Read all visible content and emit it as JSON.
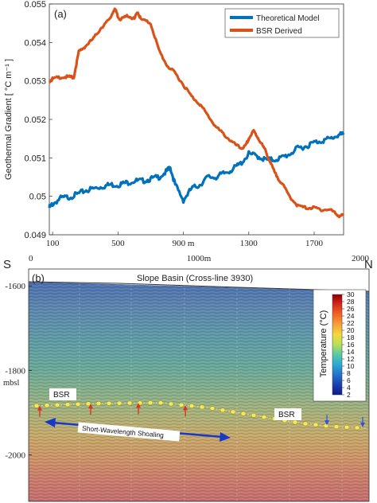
{
  "chart_data": [
    {
      "type": "line",
      "panel_label": "(a)",
      "ylabel": "Geothermal Gradient [ °C m⁻¹ ]",
      "ylim": [
        0.049,
        0.055
      ],
      "xlim": [
        80,
        1880
      ],
      "yticks": [
        "0.049",
        "0.05",
        "0.051",
        "0.052",
        "0.053",
        "0.054",
        "0.055"
      ],
      "yticks_values": [
        0.049,
        0.05,
        0.051,
        0.052,
        0.053,
        0.054,
        0.055
      ],
      "xticks": [
        "100",
        "500",
        "900 m",
        "1300",
        "1700"
      ],
      "xticks_values": [
        100,
        500,
        900,
        1300,
        1700
      ],
      "legend_position": "top-right",
      "series": [
        {
          "name": "Theoretical Model",
          "color": "#0072bd",
          "x": [
            80,
            100,
            150,
            200,
            250,
            300,
            350,
            400,
            450,
            500,
            550,
            600,
            650,
            700,
            750,
            800,
            820,
            850,
            900,
            950,
            1000,
            1050,
            1100,
            1150,
            1200,
            1250,
            1300,
            1350,
            1400,
            1450,
            1500,
            1550,
            1600,
            1650,
            1700,
            1750,
            1800,
            1850,
            1880
          ],
          "y": [
            0.0497,
            0.0498,
            0.04995,
            0.04998,
            0.05005,
            0.05015,
            0.0502,
            0.05025,
            0.0503,
            0.0503,
            0.05035,
            0.0504,
            0.0504,
            0.05045,
            0.0505,
            0.05065,
            0.05075,
            0.0503,
            0.0499,
            0.0502,
            0.0503,
            0.0505,
            0.0505,
            0.0506,
            0.0507,
            0.05085,
            0.0511,
            0.05105,
            0.05095,
            0.05095,
            0.051,
            0.0511,
            0.05125,
            0.0513,
            0.0514,
            0.05145,
            0.0515,
            0.0516,
            0.0516
          ]
        },
        {
          "name": "BSR Derived",
          "color": "#d95319",
          "x": [
            80,
            100,
            150,
            200,
            230,
            260,
            300,
            350,
            400,
            450,
            480,
            500,
            520,
            560,
            600,
            620,
            640,
            700,
            750,
            800,
            850,
            900,
            950,
            1000,
            1050,
            1100,
            1150,
            1200,
            1250,
            1280,
            1300,
            1330,
            1360,
            1400,
            1430,
            1460,
            1500,
            1550,
            1600,
            1650,
            1700,
            1750,
            1800,
            1850,
            1880
          ],
          "y": [
            0.053,
            0.05305,
            0.0531,
            0.0531,
            0.0531,
            0.05375,
            0.0539,
            0.0541,
            0.0544,
            0.0546,
            0.0549,
            0.05465,
            0.0546,
            0.0547,
            0.0546,
            0.0548,
            0.0546,
            0.0545,
            0.0538,
            0.0534,
            0.0532,
            0.0529,
            0.0526,
            0.0524,
            0.0521,
            0.0518,
            0.0516,
            0.0514,
            0.05125,
            0.0513,
            0.0515,
            0.0517,
            0.0515,
            0.0512,
            0.0509,
            0.0506,
            0.05035,
            0.05,
            0.04975,
            0.0497,
            0.0497,
            0.04965,
            0.04965,
            0.0495,
            0.0495
          ]
        }
      ]
    },
    {
      "type": "heatmap",
      "panel_label": "(b)",
      "title": "Slope Basin (Cross-line 3930)",
      "left_end_label": "S",
      "right_end_label": "N",
      "x_axis_ticks": [
        "0",
        "1000m",
        "2000"
      ],
      "x_axis_ticks_values": [
        0,
        1000,
        2000
      ],
      "ylabel_unit": "mbsl",
      "yticks": [
        "-1600",
        "-1800",
        "-2000"
      ],
      "yticks_values": [
        -1600,
        -1800,
        -2000
      ],
      "ylim": [
        -2110,
        -1560
      ],
      "colorbar": {
        "label": "Temperature (°C)",
        "ticks": [
          "30",
          "28",
          "26",
          "24",
          "22",
          "20",
          "18",
          "16",
          "14",
          "12",
          "10",
          "8",
          "6",
          "4",
          "2"
        ],
        "ticks_values": [
          30,
          28,
          26,
          24,
          22,
          20,
          18,
          16,
          14,
          12,
          10,
          8,
          6,
          4,
          2
        ]
      },
      "annotations": {
        "bsr_left": "BSR",
        "bsr_right": "BSR",
        "shoaling": "Short-Wavelength Shoaling"
      }
    }
  ]
}
